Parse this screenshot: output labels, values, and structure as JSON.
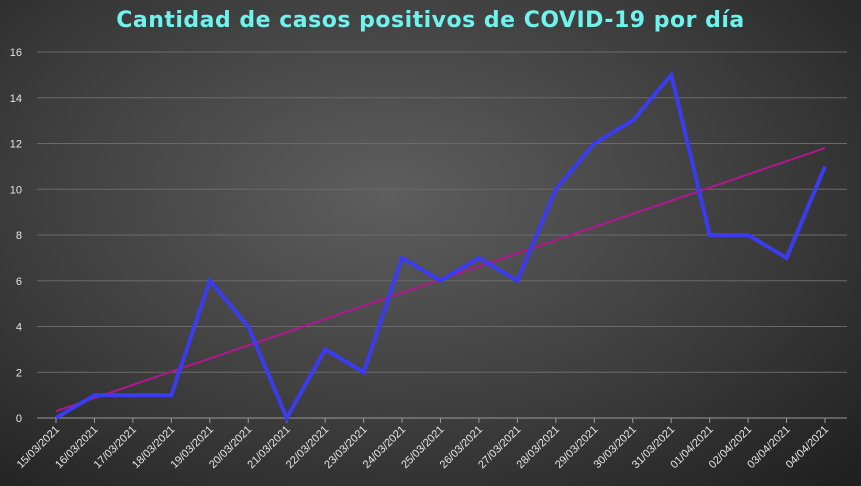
{
  "chart_data": {
    "type": "line",
    "title": "Cantidad de casos positivos de COVID-19  por día",
    "xlabel": "",
    "ylabel": "",
    "ylim": [
      0,
      16
    ],
    "yticks": [
      0,
      2,
      4,
      6,
      8,
      10,
      12,
      14,
      16
    ],
    "grid": true,
    "categories": [
      "15/03/2021",
      "16/03/2021",
      "17/03/2021",
      "18/03/2021",
      "19/03/2021",
      "20/03/2021",
      "21/03/2021",
      "22/03/2021",
      "23/03/2021",
      "24/03/2021",
      "25/03/2021",
      "26/03/2021",
      "27/03/2021",
      "28/03/2021",
      "29/03/2021",
      "30/03/2021",
      "31/03/2021",
      "01/04/2021",
      "02/04/2021",
      "03/04/2021",
      "04/04/2021"
    ],
    "series": [
      {
        "values": [
          0,
          1,
          1,
          1,
          6,
          4,
          0,
          3,
          2,
          7,
          6,
          7,
          6,
          10,
          12,
          13,
          15,
          8,
          8,
          7,
          11
        ],
        "color": "#3b3bef"
      }
    ],
    "trendline": {
      "type": "linear",
      "start": 0.3,
      "end": 11.8,
      "color": "#b0188f"
    }
  }
}
